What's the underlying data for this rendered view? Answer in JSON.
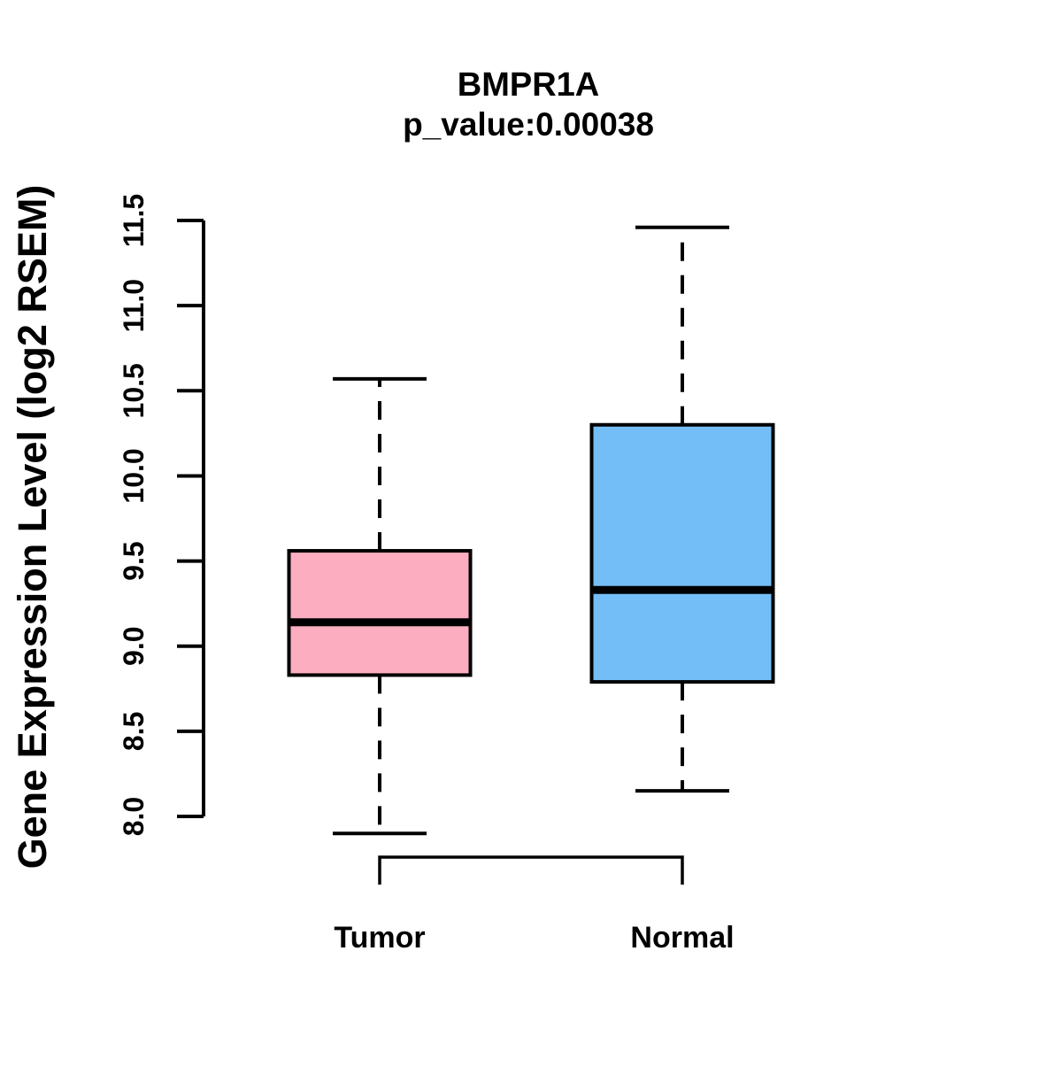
{
  "title": "BMPR1A",
  "subtitle": "p_value:0.00038",
  "chart_data": {
    "type": "boxplot",
    "title": "BMPR1A",
    "subtitle": "p_value:0.00038",
    "p_value": 0.00038,
    "ylabel": "Gene Expression Level (log2 RSEM)",
    "xlabel": "",
    "categories": [
      "Tumor",
      "Normal"
    ],
    "series": [
      {
        "name": "Tumor",
        "color": "#FCAEC0",
        "whisker_low": 7.9,
        "q1": 8.83,
        "median": 9.14,
        "q3": 9.56,
        "whisker_high": 10.57
      },
      {
        "name": "Normal",
        "color": "#74BEF7",
        "whisker_low": 8.15,
        "q1": 8.79,
        "median": 9.33,
        "q3": 10.3,
        "whisker_high": 11.46
      }
    ],
    "yticks": [
      "8.0",
      "8.5",
      "9.0",
      "9.5",
      "10.0",
      "10.5",
      "11.0",
      "11.5"
    ],
    "ylim": [
      7.75,
      11.55
    ],
    "grid": false,
    "legend": null,
    "bracket": {
      "from": "Tumor",
      "to": "Normal"
    }
  }
}
